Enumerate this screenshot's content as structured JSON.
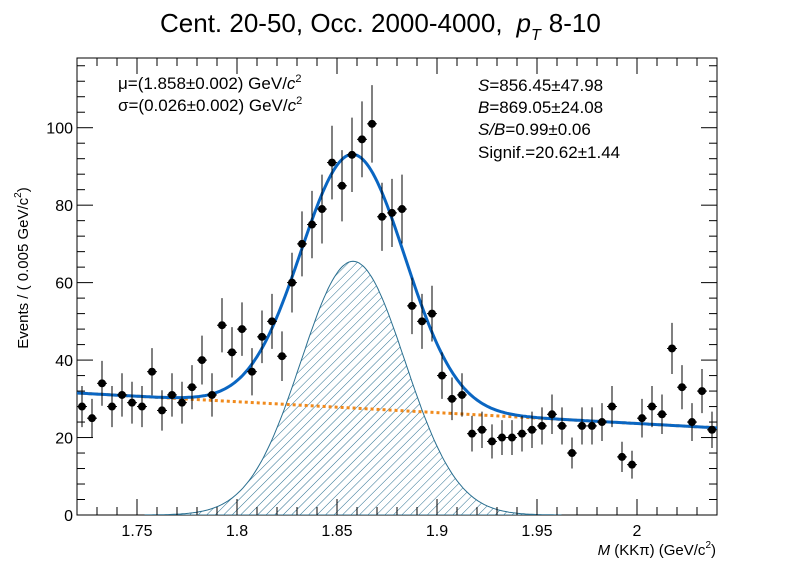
{
  "title": {
    "main": "Cent. 20-50, Occ. 2000-4000,",
    "pt_var": "p",
    "pt_sub": "T",
    "pt_range": "8-10"
  },
  "stats_left": {
    "mu_prefix": "μ=(1.858±0.002) GeV/",
    "sigma_prefix": "σ=(0.026±0.002) GeV/",
    "unit_var": "c",
    "unit_pow": "2"
  },
  "stats_right": {
    "s_var": "S",
    "s_val": "=856.45±47.98",
    "b_var": "B",
    "b_val": "=869.05±24.08",
    "sb_var": "S/B",
    "sb_val": "=0.99±0.06",
    "signif": "Signif.=20.62±1.44"
  },
  "axes": {
    "x_var": "M",
    "x_rest": " (KKπ) (GeV/c",
    "x_pow": "2",
    "x_close": ")",
    "y_label": "Events / ( 0.005 GeV/c",
    "y_pow": "2",
    "y_close": ")"
  },
  "colors": {
    "data": "#000000",
    "total_fit": "#0a66c2",
    "background_fit": "#f08a1c",
    "signal_fill": "#2a6f90"
  },
  "chart_data": {
    "type": "scatter",
    "xlim": [
      1.72,
      2.04
    ],
    "ylim": [
      0,
      118
    ],
    "xticks": [
      {
        "v": 1.75,
        "label": "1.75"
      },
      {
        "v": 1.8,
        "label": "1.8"
      },
      {
        "v": 1.85,
        "label": "1.85"
      },
      {
        "v": 1.9,
        "label": "1.9"
      },
      {
        "v": 1.95,
        "label": "1.95"
      },
      {
        "v": 2.0,
        "label": "2"
      }
    ],
    "yticks": [
      {
        "v": 0,
        "label": "0"
      },
      {
        "v": 20,
        "label": "20"
      },
      {
        "v": 40,
        "label": "40"
      },
      {
        "v": 60,
        "label": "60"
      },
      {
        "v": 80,
        "label": "80"
      },
      {
        "v": 100,
        "label": "100"
      }
    ],
    "points": [
      [
        1.7225,
        28,
        5.3
      ],
      [
        1.7275,
        25,
        5.0
      ],
      [
        1.7325,
        34,
        5.8
      ],
      [
        1.7375,
        28,
        5.3
      ],
      [
        1.7425,
        31,
        5.6
      ],
      [
        1.7475,
        29,
        5.4
      ],
      [
        1.7525,
        28,
        5.3
      ],
      [
        1.7575,
        37,
        6.1
      ],
      [
        1.7625,
        27,
        5.2
      ],
      [
        1.7675,
        31,
        5.6
      ],
      [
        1.7725,
        29,
        5.4
      ],
      [
        1.7775,
        33,
        5.7
      ],
      [
        1.7825,
        40,
        6.3
      ],
      [
        1.7875,
        31,
        5.6
      ],
      [
        1.7925,
        49,
        7.0
      ],
      [
        1.7975,
        42,
        6.5
      ],
      [
        1.8025,
        48,
        6.9
      ],
      [
        1.8075,
        37,
        6.1
      ],
      [
        1.8125,
        46,
        6.8
      ],
      [
        1.8175,
        50,
        7.1
      ],
      [
        1.8225,
        41,
        6.4
      ],
      [
        1.8275,
        60,
        7.7
      ],
      [
        1.8325,
        70,
        8.4
      ],
      [
        1.8375,
        75,
        8.7
      ],
      [
        1.8425,
        79,
        8.9
      ],
      [
        1.8475,
        91,
        9.5
      ],
      [
        1.8525,
        85,
        9.2
      ],
      [
        1.8575,
        93,
        9.6
      ],
      [
        1.8625,
        97,
        9.8
      ],
      [
        1.8675,
        101,
        10.0
      ],
      [
        1.8725,
        77,
        8.8
      ],
      [
        1.8775,
        78,
        8.8
      ],
      [
        1.8825,
        79,
        8.9
      ],
      [
        1.8875,
        54,
        7.3
      ],
      [
        1.8925,
        50,
        7.1
      ],
      [
        1.8975,
        52,
        7.2
      ],
      [
        1.9025,
        36,
        6.0
      ],
      [
        1.9075,
        30,
        5.5
      ],
      [
        1.9125,
        31,
        5.6
      ],
      [
        1.9175,
        21,
        4.6
      ],
      [
        1.9225,
        22,
        4.7
      ],
      [
        1.9275,
        19,
        4.4
      ],
      [
        1.9325,
        20,
        4.5
      ],
      [
        1.9375,
        20,
        4.5
      ],
      [
        1.9425,
        21,
        4.6
      ],
      [
        1.9475,
        22,
        4.7
      ],
      [
        1.9525,
        23,
        4.8
      ],
      [
        1.9575,
        26,
        5.1
      ],
      [
        1.9625,
        23,
        4.8
      ],
      [
        1.9675,
        16,
        4.0
      ],
      [
        1.9725,
        23,
        4.8
      ],
      [
        1.9775,
        23,
        4.8
      ],
      [
        1.9825,
        24,
        4.9
      ],
      [
        1.9875,
        28,
        5.3
      ],
      [
        1.9925,
        15,
        3.9
      ],
      [
        1.9975,
        13,
        3.6
      ],
      [
        2.0025,
        25,
        5.0
      ],
      [
        2.0075,
        28,
        5.3
      ],
      [
        2.0125,
        26,
        5.1
      ],
      [
        2.0175,
        43,
        6.6
      ],
      [
        2.0225,
        33,
        5.7
      ],
      [
        2.0275,
        24,
        4.9
      ],
      [
        2.0325,
        32,
        5.7
      ],
      [
        2.0375,
        22,
        4.7
      ]
    ],
    "fit": {
      "mean": 1.858,
      "sigma": 0.026,
      "signal_peak": 65.5,
      "background_start": 31.5,
      "background_end": 22.5
    }
  }
}
